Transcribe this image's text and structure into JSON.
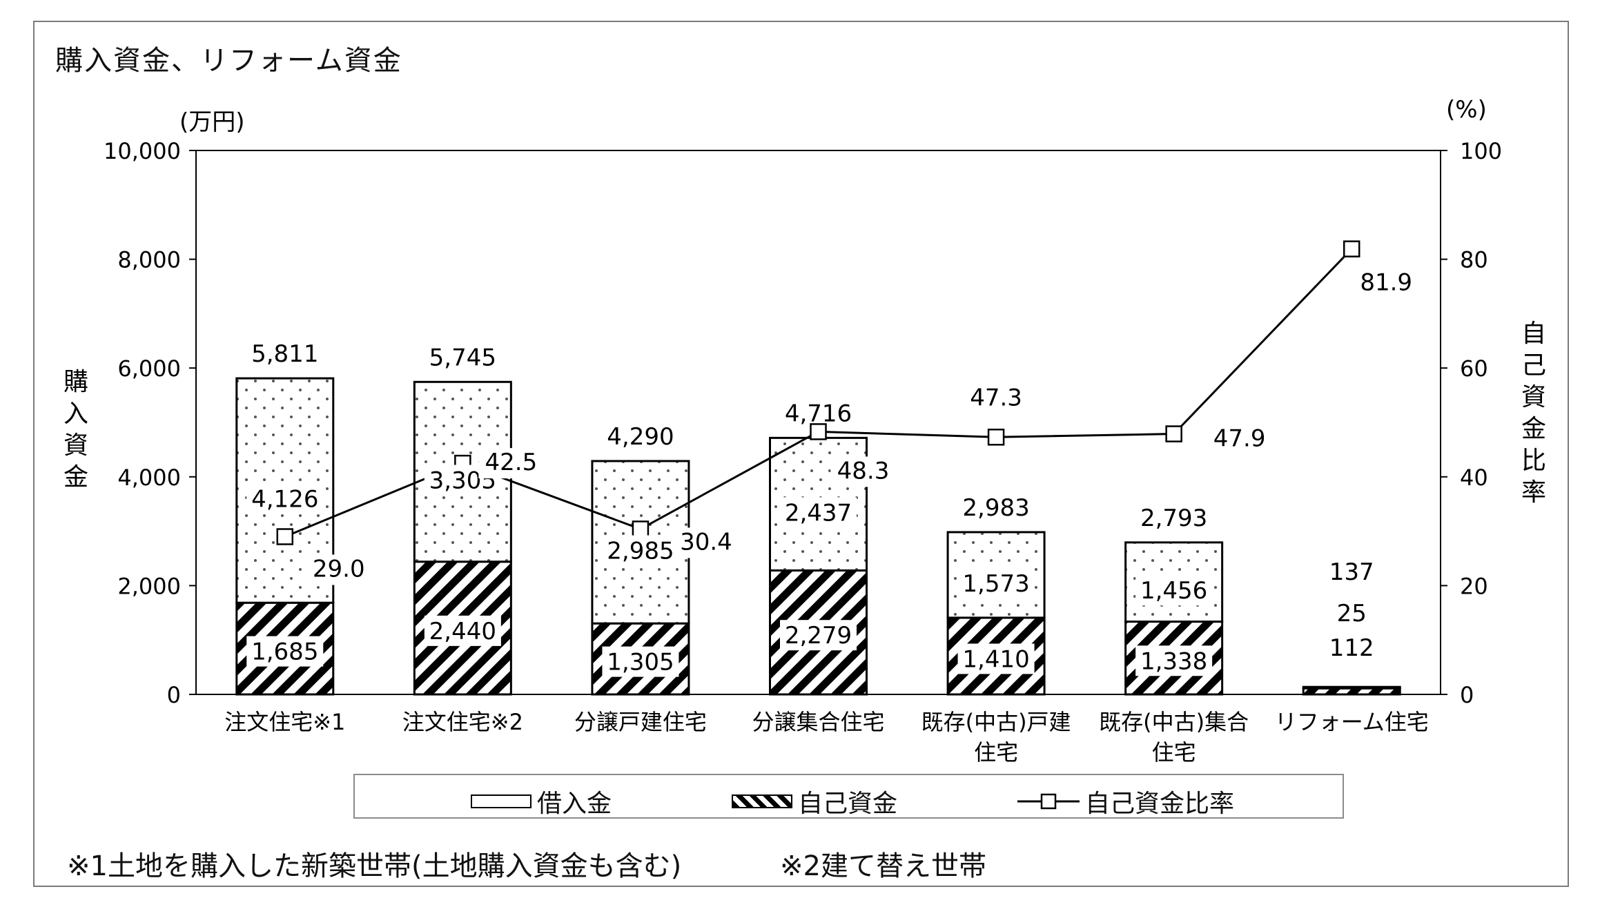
{
  "title": "購入資金、リフォーム資金",
  "notes": {
    "note1": "※1土地を購入した新築世帯(土地購入資金も含む)",
    "note2": "※2建て替え世帯"
  },
  "legend": {
    "borrowed": "借入金",
    "own": "自己資金",
    "ratio": "自己資金比率"
  },
  "colors": {
    "bar_border": "#000000",
    "dots": "#555555",
    "hatch": "#000000",
    "line": "#000000"
  },
  "chart_data": {
    "type": "bar",
    "stacked": true,
    "categories": [
      "注文住宅※1",
      "注文住宅※2",
      "分譲戸建住宅",
      "分譲集合住宅",
      "既存(中古)戸建住宅",
      "既存(中古)集合住宅",
      "リフォーム住宅"
    ],
    "category_lines": [
      [
        "注文住宅※1"
      ],
      [
        "注文住宅※2"
      ],
      [
        "分譲戸建住宅"
      ],
      [
        "分譲集合住宅"
      ],
      [
        "既存(中古)戸建",
        "住宅"
      ],
      [
        "既存(中古)集合",
        "住宅"
      ],
      [
        "リフォーム住宅"
      ]
    ],
    "series": [
      {
        "name": "自己資金",
        "values": [
          1685,
          2440,
          1305,
          2279,
          1410,
          1338,
          112
        ],
        "labels": [
          "1,685",
          "2,440",
          "1,305",
          "2,279",
          "1,410",
          "1,338",
          "112"
        ]
      },
      {
        "name": "借入金",
        "values": [
          4126,
          3305,
          2985,
          2437,
          1573,
          1456,
          25
        ],
        "labels": [
          "4,126",
          "3,305",
          "2,985",
          "2,437",
          "1,573",
          "1,456",
          "25"
        ]
      }
    ],
    "totals": [
      5811,
      5745,
      4290,
      4716,
      2983,
      2793,
      137
    ],
    "total_labels": [
      "5,811",
      "5,745",
      "4,290",
      "4,716",
      "2,983",
      "2,793",
      "137"
    ],
    "line_series": {
      "name": "自己資金比率",
      "values": [
        29.0,
        42.5,
        30.4,
        48.3,
        47.3,
        47.9,
        81.9
      ],
      "labels": [
        "29.0",
        "42.5",
        "30.4",
        "48.3",
        "47.3",
        "47.9",
        "81.9"
      ],
      "axis": "right"
    },
    "ylabel": "購入資金",
    "yunit": "(万円)",
    "ylim": [
      0,
      10000
    ],
    "yticks": [
      "0",
      "2,000",
      "4,000",
      "6,000",
      "8,000",
      "10,000"
    ],
    "y2label": "自己資金比率",
    "y2unit": "(%)",
    "y2lim": [
      0,
      100
    ],
    "y2ticks": [
      "0",
      "20",
      "40",
      "60",
      "80",
      "100"
    ],
    "legend_position": "bottom"
  }
}
